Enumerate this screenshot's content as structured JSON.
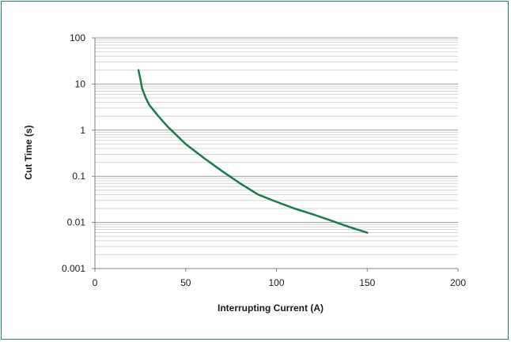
{
  "chart_data": {
    "type": "line",
    "title": "",
    "xlabel": "Interrupting Current (A)",
    "ylabel": "Cut Time (s)",
    "xlim": [
      0,
      200
    ],
    "ylim": [
      0.001,
      100
    ],
    "yscale": "log",
    "grid": "horizontal major and minor",
    "legend": "none",
    "x_ticks": [
      "0",
      "50",
      "100",
      "150",
      "200"
    ],
    "y_ticks": [
      "100",
      "10",
      "1",
      "0.1",
      "0.01",
      "0.001"
    ],
    "series": [
      {
        "color": "#1a7a4a",
        "x": [
          24,
          25,
          26,
          28,
          30,
          35,
          40,
          50,
          60,
          70,
          80,
          90,
          100,
          110,
          120,
          130,
          140,
          150
        ],
        "y": [
          20,
          13,
          8,
          5,
          3.5,
          2,
          1.2,
          0.5,
          0.25,
          0.13,
          0.07,
          0.04,
          0.028,
          0.02,
          0.015,
          0.011,
          0.008,
          0.006
        ]
      }
    ]
  },
  "colors": {
    "frame": "#1e8a5a",
    "line": "#1a7a4a",
    "major_grid": "#9a9a9a",
    "minor_grid": "#d4d4d4",
    "axis": "#808080"
  }
}
